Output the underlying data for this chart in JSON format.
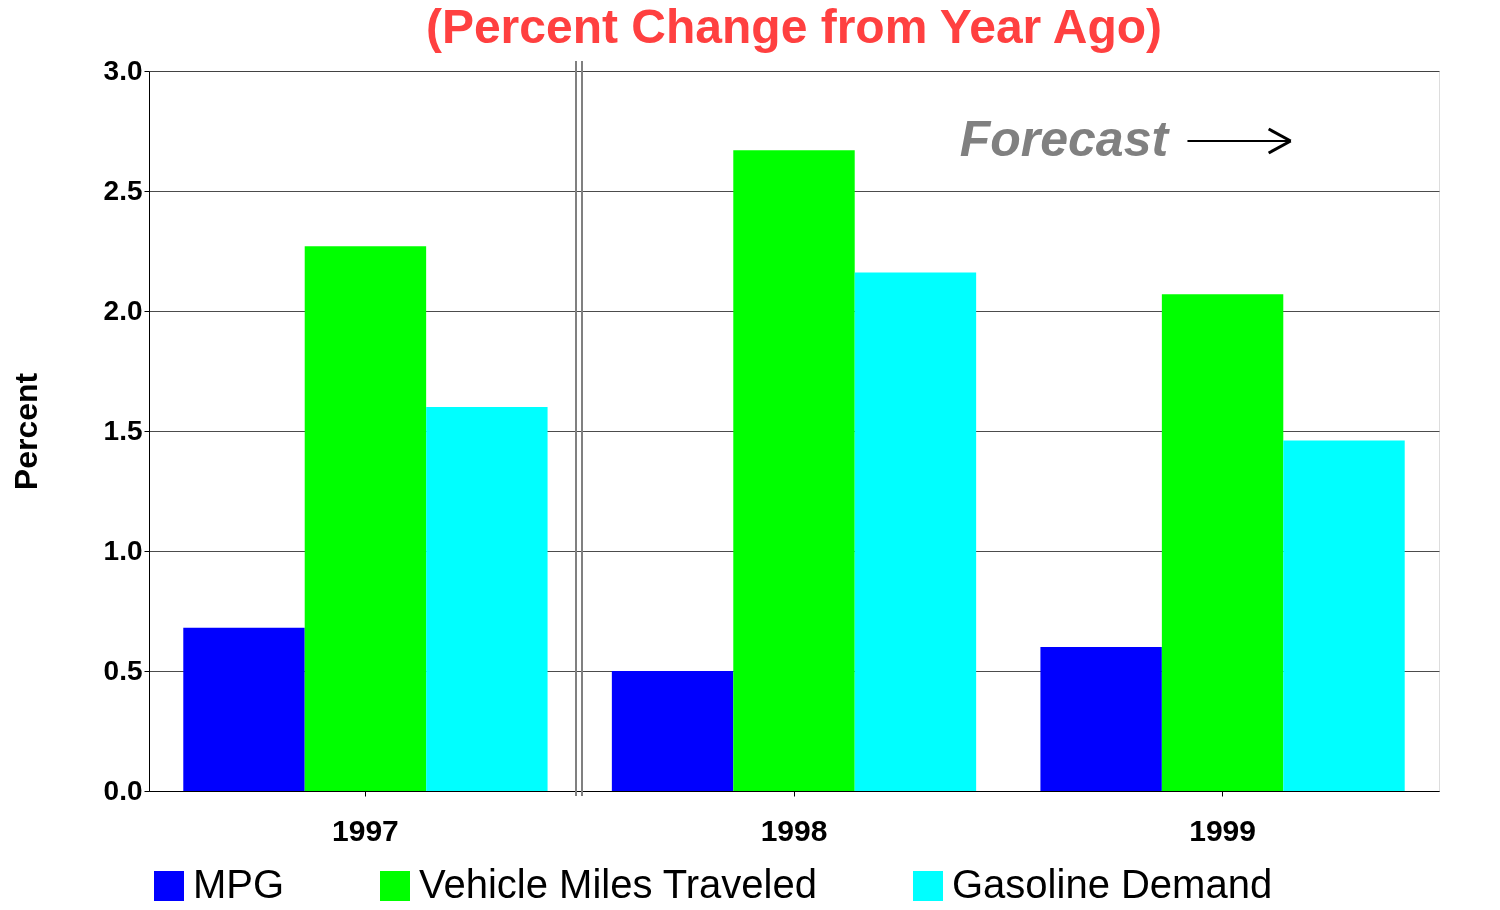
{
  "chart_data": {
    "type": "bar",
    "title": "(Percent Change from Year Ago)",
    "ylabel": "Percent",
    "categories": [
      "1997",
      "1998",
      "1999"
    ],
    "series": [
      {
        "name": "MPG",
        "color": "#0000ff",
        "values": [
          0.68,
          0.5,
          0.6
        ]
      },
      {
        "name": "Vehicle Miles Traveled",
        "color": "#00ff00",
        "values": [
          2.27,
          2.67,
          2.07
        ]
      },
      {
        "name": "Gasoline Demand",
        "color": "#00ffff",
        "values": [
          1.6,
          2.16,
          1.46
        ]
      }
    ],
    "ylim": [
      0,
      3.0
    ],
    "yticks": [
      {
        "value": 0,
        "label": "0.0"
      },
      {
        "value": 0.5,
        "label": "0.5"
      },
      {
        "value": 1,
        "label": "1.0"
      },
      {
        "value": 1.5,
        "label": "1.5"
      },
      {
        "value": 2,
        "label": "2.0"
      },
      {
        "value": 2.5,
        "label": "2.5"
      },
      {
        "value": 3,
        "label": "3.0"
      }
    ],
    "grid": "y",
    "legend": "bottom",
    "annotations": [
      "Forecast"
    ]
  }
}
